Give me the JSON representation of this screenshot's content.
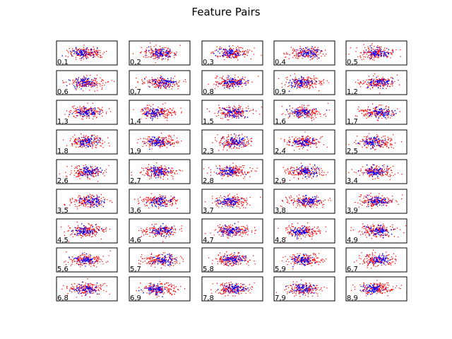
{
  "figure": {
    "title": "Feature Pairs"
  },
  "chart_data": {
    "type": "scatter",
    "title": "Feature Pairs",
    "grid": false,
    "axis_ticks": false,
    "series_colors": {
      "class_a": "#ff0000",
      "class_b": "#0000ff"
    },
    "marker": "dot",
    "layout": {
      "rows": 9,
      "cols": 5
    },
    "panels": [
      "0,1",
      "0,2",
      "0,3",
      "0,4",
      "0,5",
      "0,6",
      "0,7",
      "0,8",
      "0,9",
      "1,2",
      "1,3",
      "1,4",
      "1,5",
      "1,6",
      "1,7",
      "1,8",
      "1,9",
      "2,3",
      "2,4",
      "2,5",
      "2,6",
      "2,7",
      "2,8",
      "2,9",
      "3,4",
      "3,5",
      "3,6",
      "3,7",
      "3,8",
      "3,9",
      "4,5",
      "4,6",
      "4,7",
      "4,8",
      "4,9",
      "5,6",
      "5,7",
      "5,8",
      "5,9",
      "6,7",
      "6,8",
      "6,9",
      "7,8",
      "7,9",
      "8,9"
    ]
  }
}
